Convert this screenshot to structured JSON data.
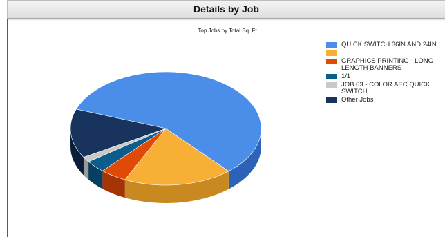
{
  "window": {
    "title": "Details by Job"
  },
  "chart_data": {
    "type": "pie",
    "title": "Top Jobs by Total Sq. Ft",
    "categories": [
      "QUICK SWITCH 36IN AND 24IN",
      "--",
      "GRAPHICS PRINTING - LONG LENGTH BANNERS",
      "1/1",
      "JOB 03 - COLOR AEC QUICK SWITCH",
      "Other Jobs"
    ],
    "values": [
      58,
      18.5,
      4.5,
      3.5,
      1.5,
      14
    ],
    "colors": [
      "#4a8eea",
      "#f7b035",
      "#e04a06",
      "#0c5d8c",
      "#c9c9c9",
      "#17335e"
    ],
    "side_colors": [
      "#2c63b8",
      "#c88a20",
      "#a43403",
      "#073f60",
      "#9a9a9a",
      "#0b1e3a"
    ],
    "legend_position": "right"
  }
}
